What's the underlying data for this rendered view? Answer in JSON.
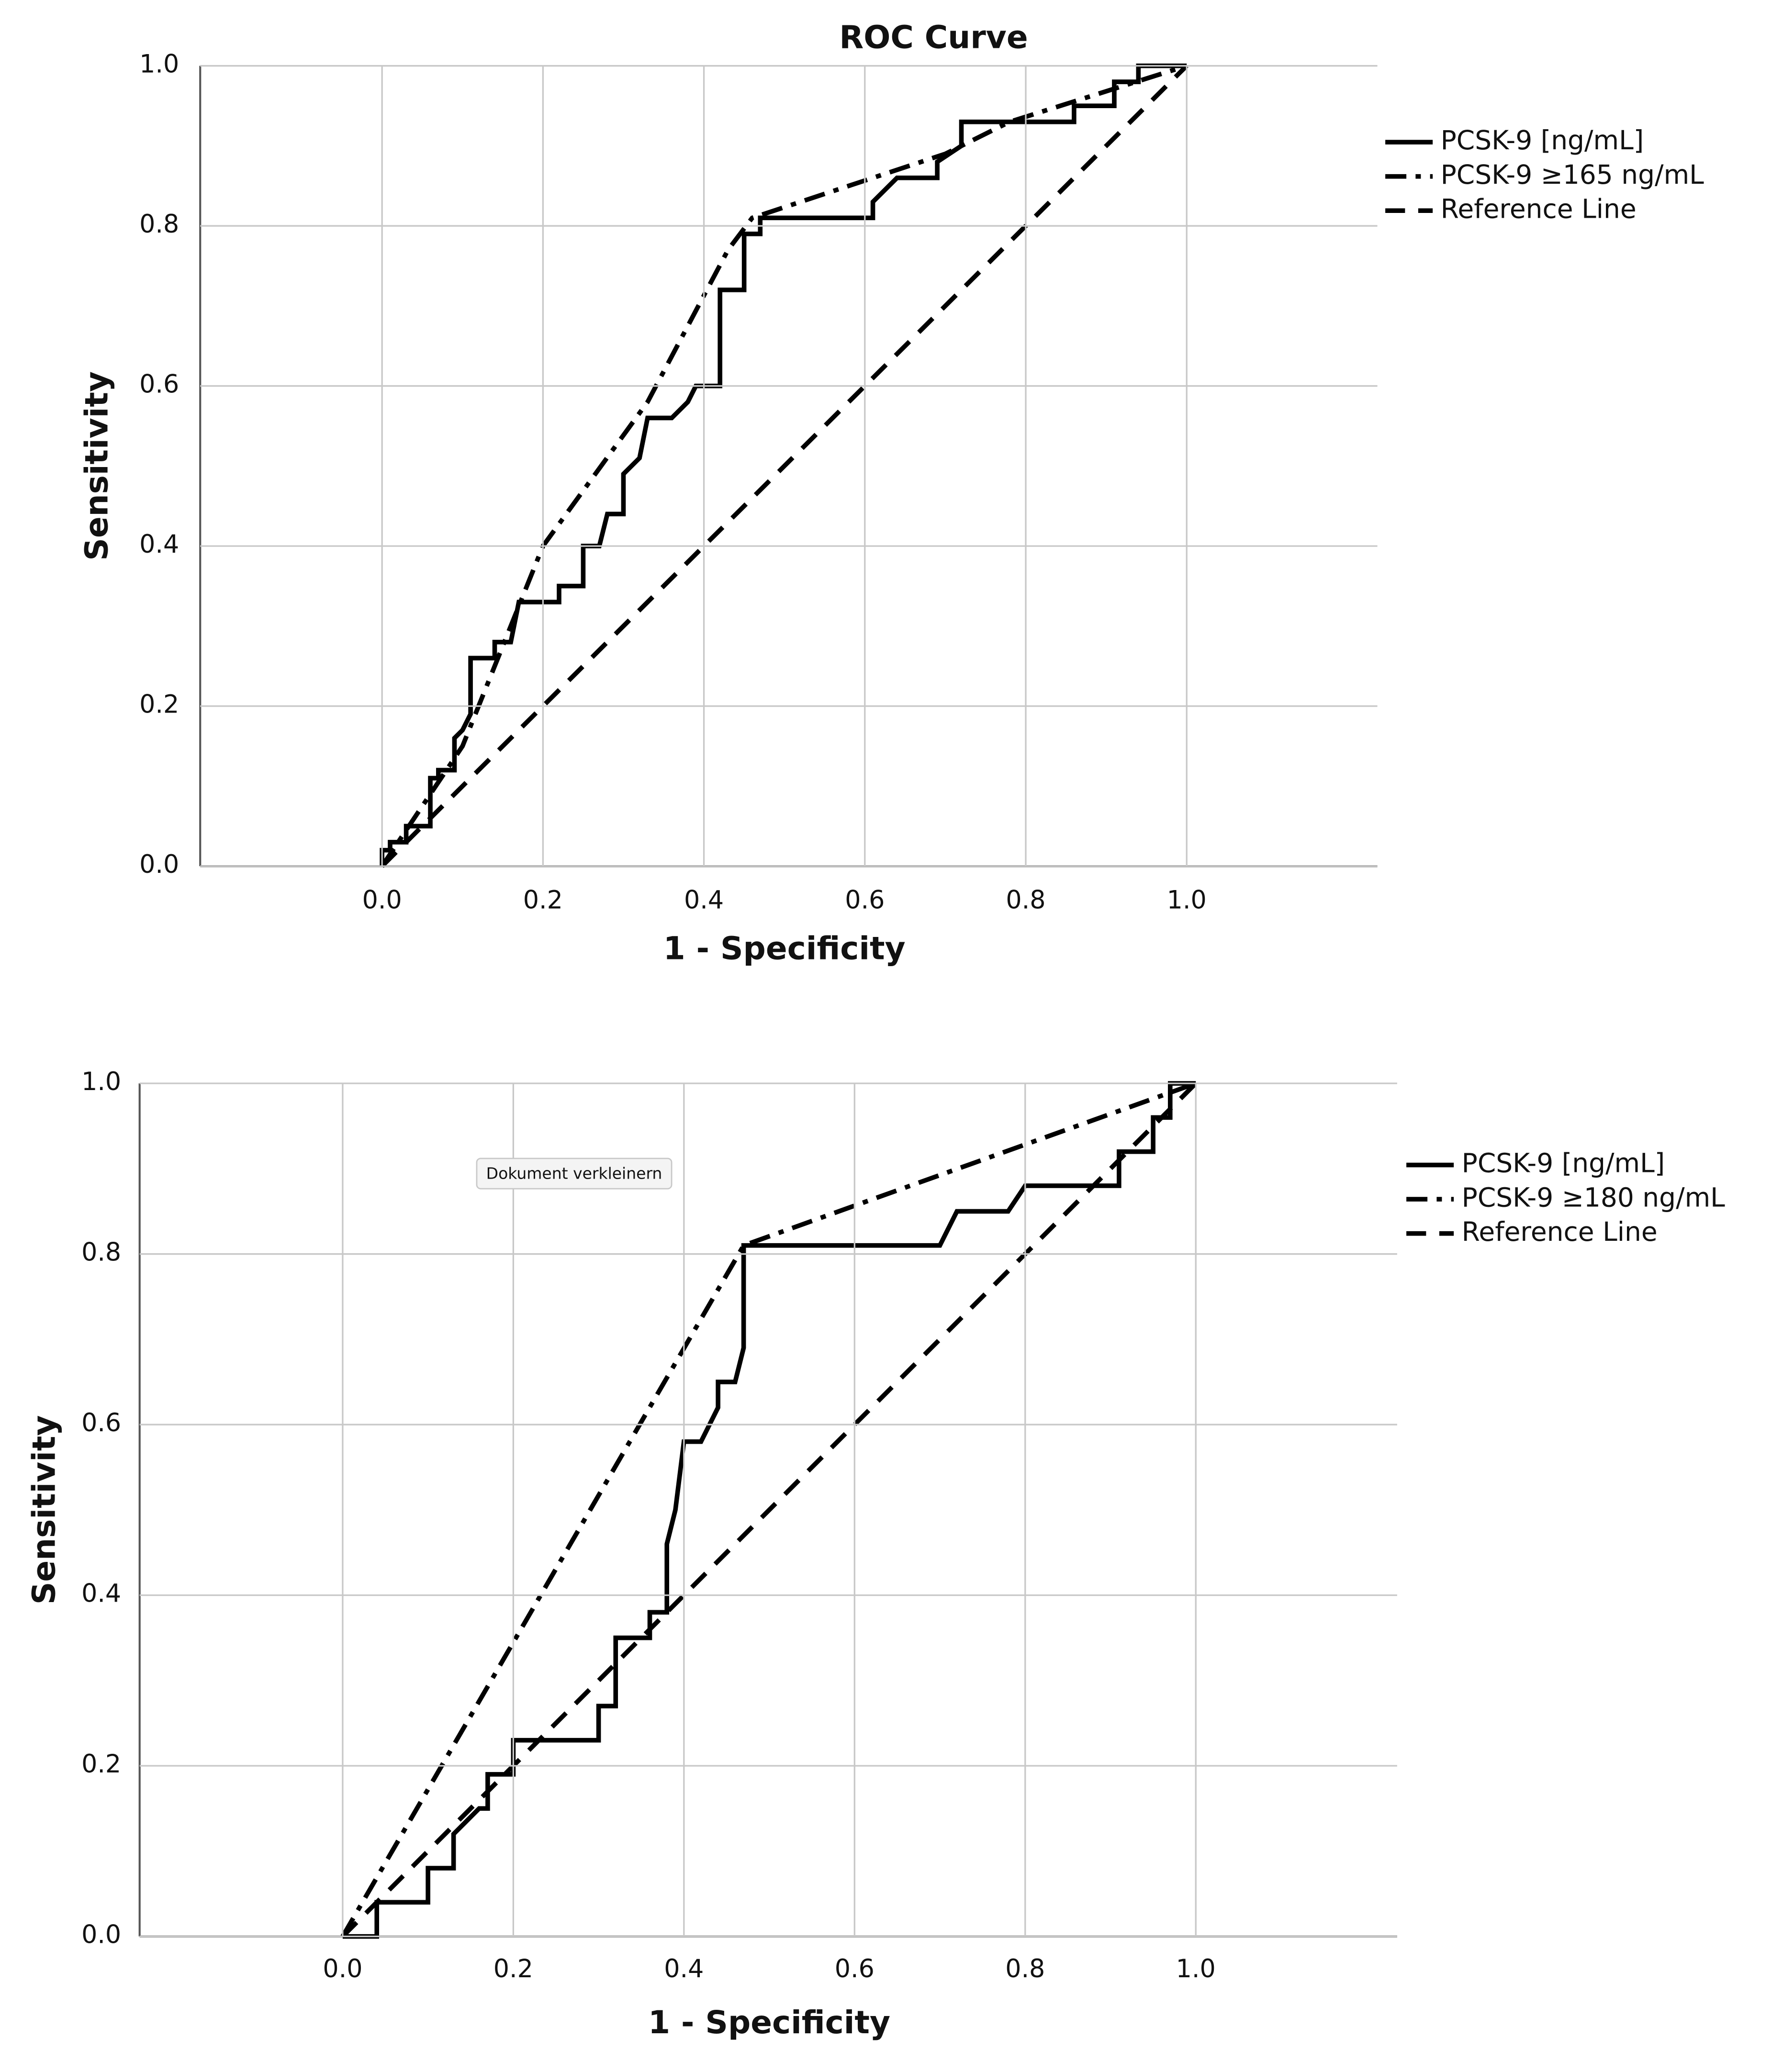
{
  "chart_data": [
    {
      "type": "line",
      "title": "ROC Curve",
      "x_label": "1 - Specificity",
      "y_label": "Sensitivity",
      "xlim": [
        -0.226,
        1.237
      ],
      "ylim": [
        0,
        1
      ],
      "xticks": [
        {
          "value": 0,
          "label": "0.0"
        },
        0.2,
        0.4,
        0.6,
        0.8,
        {
          "value": 1,
          "label": "1.0"
        }
      ],
      "yticks": [
        {
          "value": 0,
          "label": "0.0"
        },
        0.2,
        0.4,
        0.6,
        0.8,
        {
          "value": 1,
          "label": "1.0"
        }
      ],
      "grid": true,
      "legend": "right",
      "series": [
        {
          "name": "PCSK-9 [ng/mL]",
          "color": "#000000",
          "style": "solid",
          "x": [
            0,
            0,
            0.01,
            0.01,
            0.03,
            0.03,
            0.06,
            0.06,
            0.07,
            0.07,
            0.09,
            0.09,
            0.1,
            0.11,
            0.11,
            0.14,
            0.14,
            0.16,
            0.17,
            0.22,
            0.22,
            0.25,
            0.25,
            0.27,
            0.28,
            0.3,
            0.3,
            0.32,
            0.33,
            0.36,
            0.38,
            0.39,
            0.42,
            0.42,
            0.45,
            0.45,
            0.47,
            0.47,
            0.61,
            0.61,
            0.64,
            0.69,
            0.69,
            0.72,
            0.72,
            0.86,
            0.86,
            0.91,
            0.91,
            0.94,
            0.94,
            1
          ],
          "values": [
            0,
            0.02,
            0.02,
            0.03,
            0.03,
            0.05,
            0.05,
            0.11,
            0.11,
            0.12,
            0.12,
            0.16,
            0.17,
            0.19,
            0.26,
            0.26,
            0.28,
            0.28,
            0.33,
            0.33,
            0.35,
            0.35,
            0.4,
            0.4,
            0.44,
            0.44,
            0.49,
            0.51,
            0.56,
            0.56,
            0.58,
            0.6,
            0.6,
            0.72,
            0.72,
            0.79,
            0.79,
            0.81,
            0.81,
            0.83,
            0.86,
            0.86,
            0.88,
            0.9,
            0.93,
            0.93,
            0.95,
            0.95,
            0.98,
            0.98,
            1,
            1
          ]
        },
        {
          "name": "PCSK-9 ≥165 ng/mL",
          "color": "#000000",
          "style": "dashdot",
          "x": [
            0,
            0.1,
            0.2,
            0.33,
            0.43,
            0.46,
            0.7,
            0.78,
            1
          ],
          "values": [
            0,
            0.15,
            0.4,
            0.58,
            0.77,
            0.81,
            0.89,
            0.93,
            1
          ]
        },
        {
          "name": "Reference Line",
          "color": "#000000",
          "style": "dashed",
          "x": [
            0,
            1
          ],
          "values": [
            0,
            1
          ]
        }
      ]
    },
    {
      "type": "line",
      "x_label": "1 - Specificity",
      "y_label": "Sensitivity",
      "xlim": [
        -0.238,
        1.236
      ],
      "ylim": [
        0,
        1
      ],
      "xticks": [
        {
          "value": 0,
          "label": "0.0"
        },
        0.2,
        0.4,
        0.6,
        0.8,
        {
          "value": 1,
          "label": "1.0"
        }
      ],
      "yticks": [
        {
          "value": 0,
          "label": "0.0"
        },
        0.2,
        0.4,
        0.6,
        0.8,
        {
          "value": 1,
          "label": "1.0"
        }
      ],
      "grid": true,
      "legend": "right",
      "series": [
        {
          "name": "PCSK-9 [ng/mL]",
          "color": "#000000",
          "style": "solid",
          "x": [
            0,
            0.04,
            0.04,
            0.1,
            0.1,
            0.13,
            0.13,
            0.16,
            0.17,
            0.17,
            0.2,
            0.2,
            0.3,
            0.3,
            0.32,
            0.32,
            0.36,
            0.36,
            0.38,
            0.38,
            0.39,
            0.4,
            0.42,
            0.44,
            0.44,
            0.46,
            0.47,
            0.47,
            0.7,
            0.72,
            0.78,
            0.8,
            0.91,
            0.91,
            0.95,
            0.95,
            0.97,
            0.97,
            1
          ],
          "values": [
            0,
            0,
            0.04,
            0.04,
            0.08,
            0.08,
            0.12,
            0.15,
            0.15,
            0.19,
            0.19,
            0.23,
            0.23,
            0.27,
            0.27,
            0.35,
            0.35,
            0.38,
            0.38,
            0.46,
            0.5,
            0.58,
            0.58,
            0.62,
            0.65,
            0.65,
            0.69,
            0.81,
            0.81,
            0.85,
            0.85,
            0.88,
            0.88,
            0.92,
            0.92,
            0.96,
            0.96,
            1,
            1
          ]
        },
        {
          "name": "PCSK-9 ≥180 ng/mL",
          "color": "#000000",
          "style": "dashdot",
          "x": [
            0,
            0.47,
            1
          ],
          "values": [
            0,
            0.81,
            1
          ]
        },
        {
          "name": "Reference Line",
          "color": "#000000",
          "style": "dashed",
          "x": [
            0,
            1
          ],
          "values": [
            0,
            1
          ]
        }
      ]
    }
  ],
  "tooltip": "Dokument verkleinern"
}
